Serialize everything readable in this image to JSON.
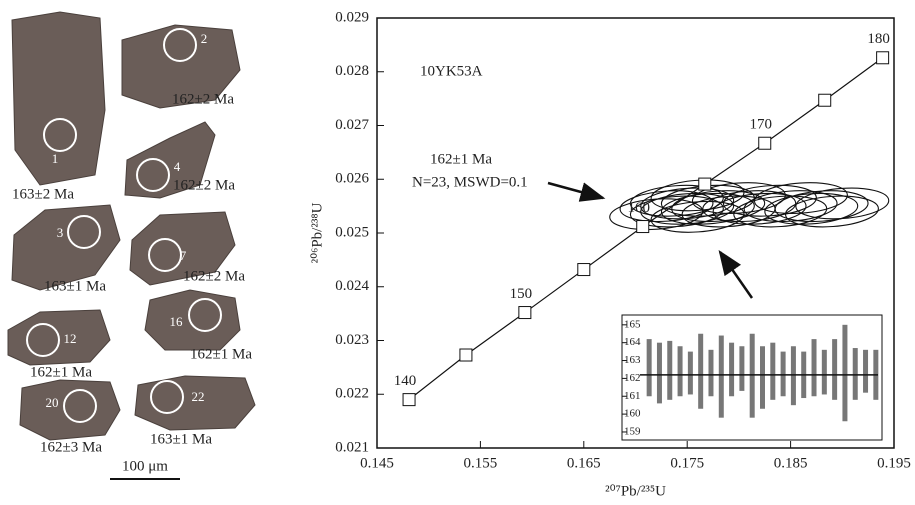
{
  "zircons": [
    {
      "spot": "1",
      "age": "163±2 Ma"
    },
    {
      "spot": "2",
      "age": "162±2 Ma"
    },
    {
      "spot": "4",
      "age": "162±2 Ma"
    },
    {
      "spot": "3",
      "age": "163±1 Ma"
    },
    {
      "spot": "7",
      "age": "162±2 Ma"
    },
    {
      "spot": "12",
      "age": "162±1 Ma"
    },
    {
      "spot": "16",
      "age": "162±1 Ma"
    },
    {
      "spot": "20",
      "age": "162±3 Ma"
    },
    {
      "spot": "22",
      "age": "163±1 Ma"
    }
  ],
  "scale_bar": "100 μm",
  "chart_data": [
    {
      "type": "concordia",
      "sample": "10YK53A",
      "age_note": "162±1 Ma",
      "stats_note": "N=23, MSWD=0.1",
      "x_label": "²⁰⁷Pb/²³⁵U",
      "y_label": "²⁰⁶Pb/²³⁸U",
      "xlim": [
        0.145,
        0.195
      ],
      "xticks": [
        0.145,
        0.155,
        0.165,
        0.175,
        0.185,
        0.195
      ],
      "ylim": [
        0.021,
        0.029
      ],
      "yticks": [
        0.021,
        0.022,
        0.023,
        0.024,
        0.025,
        0.026,
        0.027,
        0.028,
        0.029
      ],
      "curve": {
        "x": [
          0.1481,
          0.1536,
          0.1593,
          0.165,
          0.1707,
          0.1767,
          0.1825,
          0.1883,
          0.1939
        ],
        "values": [
          0.0219,
          0.02273,
          0.02352,
          0.02432,
          0.02512,
          0.02591,
          0.02667,
          0.02747,
          0.02826
        ],
        "point_labels": [
          140,
          null,
          150,
          null,
          160,
          null,
          170,
          null,
          180
        ]
      },
      "ellipses": {
        "x": [
          0.172,
          0.173,
          0.174,
          0.174,
          0.175,
          0.175,
          0.176,
          0.176,
          0.177,
          0.177,
          0.178,
          0.179,
          0.18,
          0.181,
          0.182,
          0.183,
          0.184,
          0.185,
          0.186,
          0.187,
          0.188,
          0.189,
          0.19
        ],
        "values": [
          0.02535,
          0.0255,
          0.0254,
          0.0256,
          0.02545,
          0.02555,
          0.0253,
          0.0257,
          0.02545,
          0.0256,
          0.0255,
          0.0254,
          0.02565,
          0.0255,
          0.02545,
          0.0256,
          0.0254,
          0.0255,
          0.02565,
          0.02545,
          0.0255,
          0.0254,
          0.02555
        ],
        "x_err": 0.0045,
        "y_err": 0.00028
      }
    },
    {
      "type": "errorbar",
      "values": [
        162.6,
        162.3,
        162.45,
        162.4,
        162.3,
        162.4,
        162.3,
        162.1,
        162.5,
        162.55,
        162.15,
        162.05,
        162.4,
        162.25,
        162.15,
        162.2,
        162.6,
        162.35,
        162.5,
        162.3,
        162.25,
        162.4,
        162.2
      ],
      "errors": [
        1.6,
        1.7,
        1.65,
        1.4,
        1.2,
        2.1,
        1.3,
        2.3,
        1.5,
        1.25,
        2.35,
        1.75,
        1.6,
        1.25,
        1.65,
        1.3,
        1.6,
        1.25,
        1.7,
        2.7,
        1.45,
        1.2,
        1.4
      ],
      "mean": 162.2,
      "ylim": [
        158.55,
        165.55
      ],
      "yticks": [
        159,
        160,
        161,
        162,
        163,
        164,
        165
      ],
      "color": "#777777"
    }
  ]
}
